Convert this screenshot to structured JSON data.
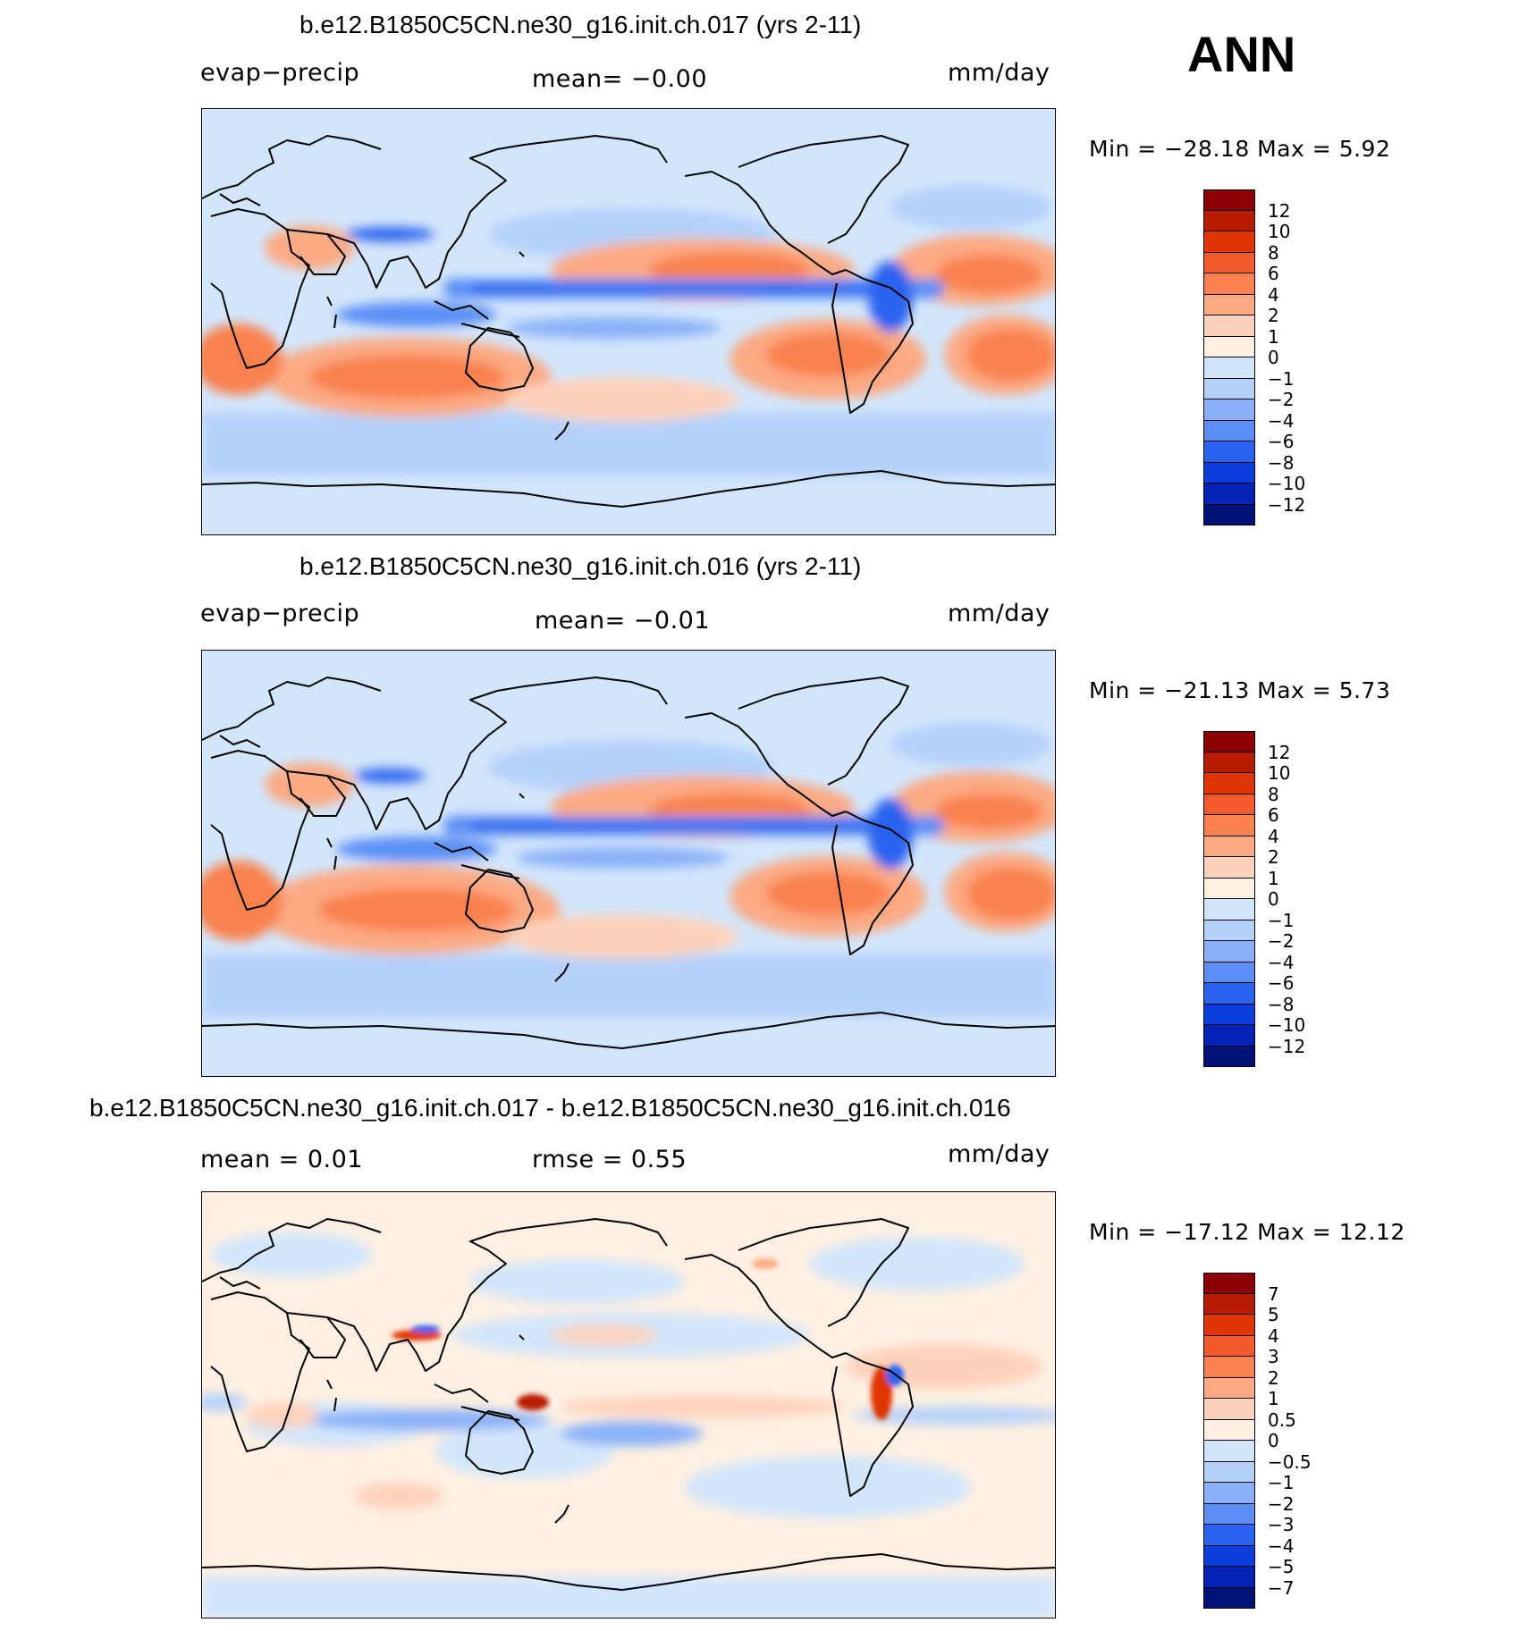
{
  "panel_top": {
    "title": "b.e12.B1850C5CN.ne30_g16.init.ch.017 (yrs 2-11)",
    "variable": "evap−precip",
    "mean_text": "mean=   −0.00",
    "units": "mm/day",
    "minmax": "Min  =  −28.18  Max  =     5.92"
  },
  "panel_mid": {
    "title": "b.e12.B1850C5CN.ne30_g16.init.ch.016 (yrs 2-11)",
    "variable": "evap−precip",
    "mean_text": "mean=   −0.01",
    "units": "mm/day",
    "minmax": "Min  =  −21.13  Max  =     5.73"
  },
  "panel_bot": {
    "title": "b.e12.B1850C5CN.ne30_g16.init.ch.017 - b.e12.B1850C5CN.ne30_g16.init.ch.016",
    "mean_text": "mean  =     0.01",
    "rmse_text": "rmse  =     0.55",
    "units": "mm/day",
    "minmax": "Min  =  −17.12  Max  =    12.12"
  },
  "season": "ANN",
  "colorbar_field": {
    "labels": [
      "12",
      "10",
      "8",
      "6",
      "4",
      "2",
      "1",
      "0",
      "−1",
      "−2",
      "−4",
      "−6",
      "−8",
      "−10",
      "−12"
    ],
    "colors": [
      "#8b0000",
      "#b81c00",
      "#e03500",
      "#f45a2a",
      "#f98250",
      "#fbaa84",
      "#fdd2bb",
      "#fdf0e2",
      "#d2e6fb",
      "#b5d1fa",
      "#8ab1f8",
      "#5c8ff6",
      "#2a63ef",
      "#0b3fdc",
      "#0422b5",
      "#011277"
    ]
  },
  "colorbar_diff": {
    "labels": [
      "7",
      "5",
      "4",
      "3",
      "2",
      "1",
      "0.5",
      "0",
      "−0.5",
      "−1",
      "−2",
      "−3",
      "−4",
      "−5",
      "−7"
    ],
    "colors": [
      "#8b0000",
      "#b81c00",
      "#e03500",
      "#f45a2a",
      "#f98250",
      "#fbaa84",
      "#fdd2bb",
      "#fdf0e2",
      "#d2e6fb",
      "#b5d1fa",
      "#8ab1f8",
      "#5c8ff6",
      "#2a63ef",
      "#0b3fdc",
      "#0422b5",
      "#011277"
    ]
  }
}
